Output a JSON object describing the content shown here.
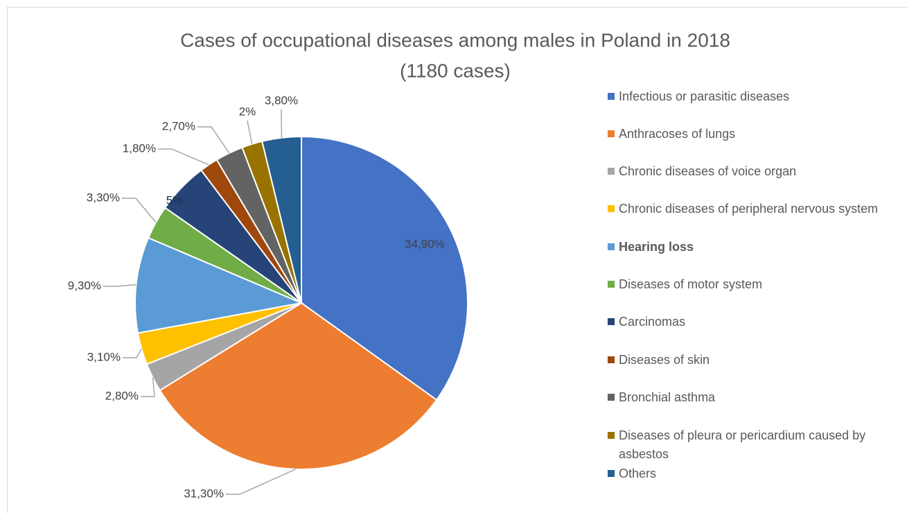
{
  "chart_data": {
    "type": "pie",
    "title": "Cases of occupational diseases among males in Poland in 2018",
    "subtitle": "(1180 cases)",
    "categories": [
      "Infectious or parasitic diseases",
      "Anthracoses of lungs",
      "Chronic diseases of voice organ",
      "Chronic diseases of peripheral nervous system",
      "Hearing loss",
      "Diseases of motor system",
      "Carcinomas",
      "Diseases of skin",
      "Bronchial asthma",
      "Diseases of pleura or pericardium caused by asbestos",
      "Others"
    ],
    "values": [
      34.9,
      31.3,
      2.8,
      3.1,
      9.3,
      3.3,
      5,
      1.8,
      2.7,
      2,
      3.8
    ],
    "value_labels": [
      "34,90%",
      "31,30%",
      "2,80%",
      "3,10%",
      "9,30%",
      "3,30%",
      "5%",
      "1,80%",
      "2,70%",
      "2%",
      "3,80%"
    ],
    "colors": [
      "#4472c4",
      "#ed7d31",
      "#a5a5a5",
      "#ffc000",
      "#5b9bd5",
      "#70ad47",
      "#264478",
      "#9e480e",
      "#636363",
      "#997300",
      "#255e91"
    ],
    "legend": "right"
  }
}
